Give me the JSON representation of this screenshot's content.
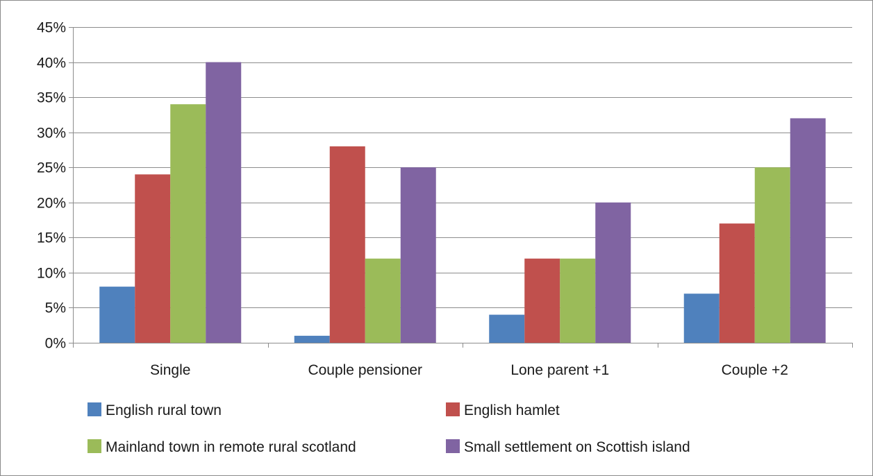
{
  "chart_data": {
    "type": "bar",
    "title": "",
    "xlabel": "",
    "ylabel": "",
    "categories": [
      "Single",
      "Couple pensioner",
      "Lone parent +1",
      "Couple +2"
    ],
    "series": [
      {
        "name": "English rural town",
        "color": "#4f81bd",
        "values": [
          8,
          1,
          4,
          7
        ]
      },
      {
        "name": "English hamlet",
        "color": "#c0504d",
        "values": [
          24,
          28,
          12,
          17
        ]
      },
      {
        "name": "Mainland town in remote rural scotland",
        "color": "#9bbb59",
        "values": [
          34,
          12,
          12,
          25
        ]
      },
      {
        "name": "Small settlement on Scottish island",
        "color": "#8064a2",
        "values": [
          40,
          25,
          20,
          32
        ]
      }
    ],
    "ylim": [
      0,
      45
    ],
    "yticks": [
      0,
      5,
      10,
      15,
      20,
      25,
      30,
      35,
      40,
      45
    ],
    "ytick_labels": [
      "0%",
      "5%",
      "10%",
      "15%",
      "20%",
      "25%",
      "30%",
      "35%",
      "40%",
      "45%"
    ],
    "grid": true,
    "legend_position": "bottom"
  }
}
